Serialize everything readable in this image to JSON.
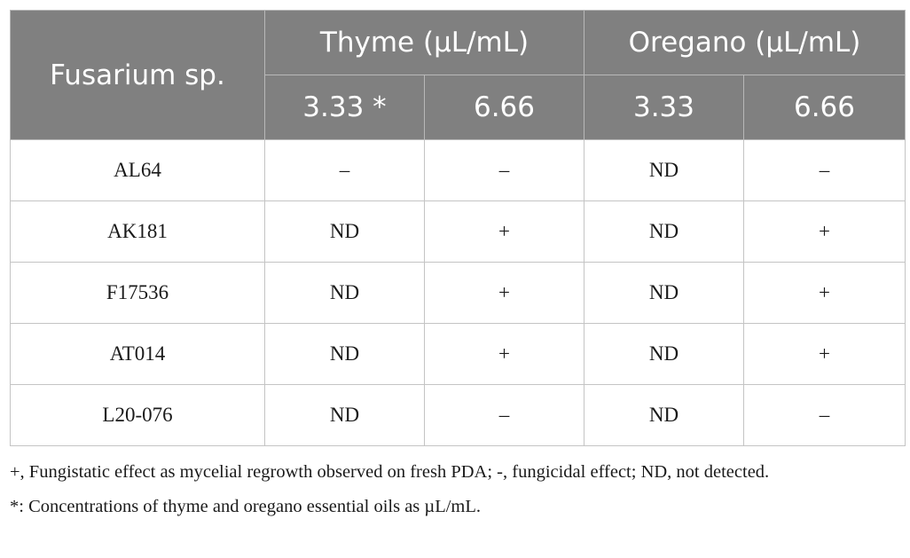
{
  "table": {
    "row_header": "Fusarium sp.",
    "groups": [
      {
        "label": "Thyme (µL/mL)"
      },
      {
        "label": "Oregano (µL/mL)"
      }
    ],
    "subheaders": [
      "3.33 *",
      "6.66",
      "3.33",
      "6.66"
    ],
    "rows": [
      {
        "strain": "AL64",
        "cells": [
          "–",
          "–",
          "ND",
          "–"
        ]
      },
      {
        "strain": "AK181",
        "cells": [
          "ND",
          "+",
          "ND",
          "+"
        ]
      },
      {
        "strain": "F17536",
        "cells": [
          "ND",
          "+",
          "ND",
          "+"
        ]
      },
      {
        "strain": "AT014",
        "cells": [
          "ND",
          "+",
          "ND",
          "+"
        ]
      },
      {
        "strain": "L20-076",
        "cells": [
          "ND",
          "–",
          "ND",
          "–"
        ]
      }
    ]
  },
  "footnotes": {
    "legend": "+, Fungistatic effect as mycelial regrowth observed on fresh PDA; -, fungicidal effect; ND, not detected.",
    "asterisk": "*: Concentrations of thyme and oregano essential oils as µL/mL."
  }
}
